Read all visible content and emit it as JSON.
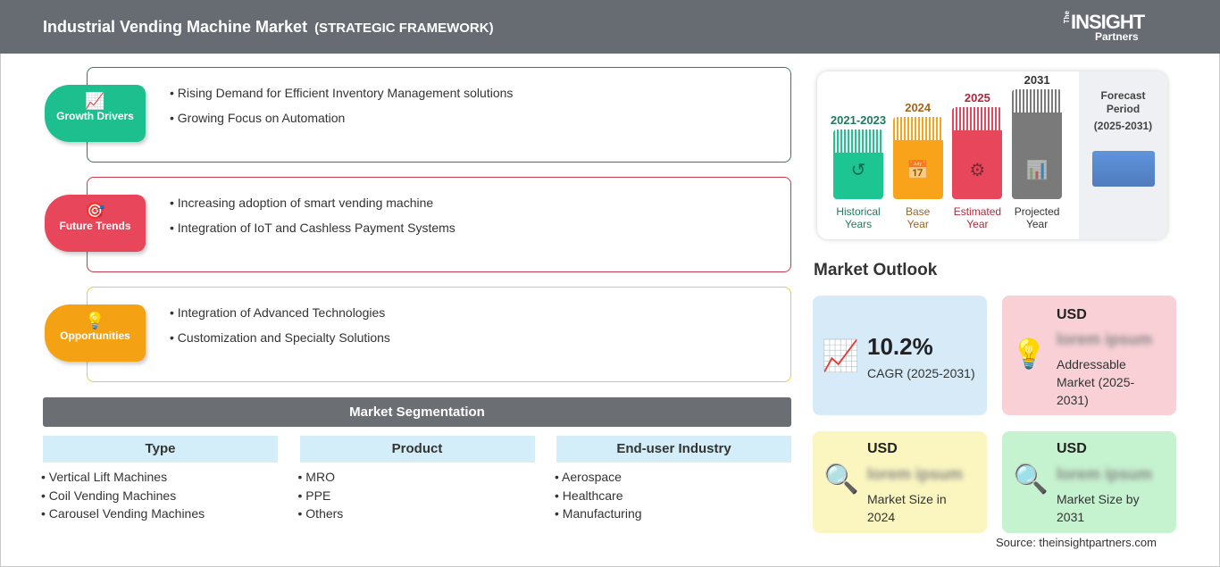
{
  "header": {
    "title": "Industrial Vending Machine Market",
    "subtitle": "(STRATEGIC FRAMEWORK)",
    "logo": "The INSIGHT Partners"
  },
  "framework": [
    {
      "label": "Growth Drivers",
      "icon": "bar-chart-up-icon",
      "color": "#1dbf8e",
      "border": "#2e7d62",
      "items": [
        "Rising Demand for Efficient Inventory Management solutions",
        "Growing Focus on Automation"
      ]
    },
    {
      "label": "Future Trends",
      "icon": "target-icon",
      "color": "#e8475b",
      "border": "#c8394d",
      "items": [
        "Increasing adoption of smart vending machine",
        "Integration of IoT and Cashless Payment Systems"
      ]
    },
    {
      "label": "Opportunities",
      "icon": "lightbulb-hand-icon",
      "color": "#f5a114",
      "border": "#f0c93a",
      "items": [
        "Integration of Advanced Technologies",
        "Customization and Specialty Solutions"
      ]
    }
  ],
  "segmentation": {
    "title": "Market Segmentation",
    "columns": [
      {
        "header": "Type",
        "items": [
          "Vertical Lift Machines",
          "Coil Vending Machines",
          "Carousel Vending Machines"
        ]
      },
      {
        "header": "Product",
        "items": [
          "MRO",
          "PPE",
          "Others"
        ]
      },
      {
        "header": "End-user Industry",
        "items": [
          "Aerospace",
          "Healthcare",
          "Manufacturing"
        ]
      }
    ]
  },
  "timeline": {
    "bars": [
      {
        "year": "2021-2023",
        "line1": "Historical",
        "line2": "Years",
        "color": "#1cc592",
        "text": "#1f7a5e",
        "icon": "history-icon"
      },
      {
        "year": "2024",
        "line1": "Base",
        "line2": "Year",
        "color": "#f9a31a",
        "text": "#a3641c",
        "icon": "calendar-icon"
      },
      {
        "year": "2025",
        "line1": "Estimated",
        "line2": "Year",
        "color": "#e8475b",
        "text": "#b3253a",
        "icon": "analytics-gear-icon"
      },
      {
        "year": "2031",
        "line1": "Projected",
        "line2": "Year",
        "color": "#7a7a7a",
        "text": "#333",
        "icon": "presentation-chart-icon"
      }
    ],
    "forecast": {
      "line1": "Forecast",
      "line2": "Period",
      "line3": "(2025-2031)"
    }
  },
  "outlook": {
    "title": "Market Outlook",
    "cagr": {
      "value": "10.2%",
      "label": "CAGR (2025-2031)"
    },
    "addressable": {
      "currency": "USD",
      "value": "lorem ipsum",
      "label": "Addressable Market (2025-2031)"
    },
    "size2024": {
      "currency": "USD",
      "value": "lorem ipsum",
      "label": "Market Size in 2024"
    },
    "size2031": {
      "currency": "USD",
      "value": "lorem ipsum",
      "label": "Market Size by 2031"
    }
  },
  "source": "Source: theinsightpartners.com"
}
